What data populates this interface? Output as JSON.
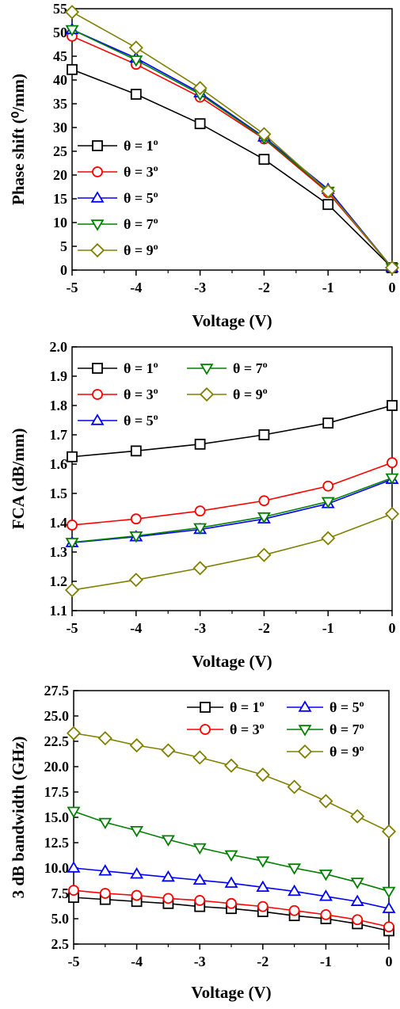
{
  "chart_data": [
    {
      "type": "line",
      "xlabel": "Voltage (V)",
      "ylabel": "Phase shift (⁰/mm)",
      "xlim": [
        -5,
        0
      ],
      "ylim": [
        0,
        55
      ],
      "xticks": [
        -5,
        -4,
        -3,
        -2,
        -1,
        0
      ],
      "xtick_labels": [
        "-5",
        "-4",
        "-3",
        "-2",
        "-1",
        "0"
      ],
      "yticks": [
        0,
        5,
        10,
        15,
        20,
        25,
        30,
        35,
        40,
        45,
        50,
        55
      ],
      "ytick_labels": [
        "0",
        "5",
        "10",
        "15",
        "20",
        "25",
        "30",
        "35",
        "40",
        "45",
        "50",
        "55"
      ],
      "legend": {
        "position": "left",
        "columns": 1
      },
      "x": [
        -5,
        -4,
        -3,
        -2,
        -1,
        0
      ],
      "series": [
        {
          "name": "θ = 1",
          "sup": "o",
          "color": "#000000",
          "marker": "square",
          "values": [
            42.2,
            37.0,
            30.8,
            23.3,
            13.8,
            0.5
          ]
        },
        {
          "name": "θ = 3",
          "sup": "o",
          "color": "#ff0000",
          "marker": "circle",
          "values": [
            49.2,
            43.3,
            36.4,
            27.6,
            16.3,
            0.5
          ]
        },
        {
          "name": "θ = 5",
          "sup": "o",
          "color": "#0000ff",
          "marker": "triangle-up",
          "values": [
            50.6,
            44.6,
            37.3,
            28.0,
            17.0,
            0.5
          ]
        },
        {
          "name": "θ = 7",
          "sup": "o",
          "color": "#008000",
          "marker": "triangle-down",
          "values": [
            50.6,
            44.2,
            37.0,
            27.8,
            16.6,
            0.5
          ]
        },
        {
          "name": "θ = 9",
          "sup": "o",
          "color": "#808000",
          "marker": "diamond",
          "values": [
            54.3,
            46.8,
            38.3,
            28.6,
            16.6,
            0.5
          ]
        }
      ]
    },
    {
      "type": "line",
      "xlabel": "Voltage (V)",
      "ylabel": "FCA (dB/mm)",
      "xlim": [
        -5,
        0
      ],
      "ylim": [
        1.1,
        2.0
      ],
      "xticks": [
        -5,
        -4,
        -3,
        -2,
        -1,
        0
      ],
      "xtick_labels": [
        "-5",
        "-4",
        "-3",
        "-2",
        "-1",
        "0"
      ],
      "yticks": [
        1.1,
        1.2,
        1.3,
        1.4,
        1.5,
        1.6,
        1.7,
        1.8,
        1.9,
        2.0
      ],
      "ytick_labels": [
        "1.1",
        "1.2",
        "1.3",
        "1.4",
        "1.5",
        "1.6",
        "1.7",
        "1.8",
        "1.9",
        "2.0"
      ],
      "legend": {
        "position": "top-left",
        "columns": 2
      },
      "x": [
        -5,
        -4,
        -3,
        -2,
        -1,
        0
      ],
      "series": [
        {
          "name": "θ = 1",
          "sup": "o",
          "color": "#000000",
          "marker": "square",
          "values": [
            1.625,
            1.645,
            1.668,
            1.7,
            1.74,
            1.8
          ]
        },
        {
          "name": "θ = 3",
          "sup": "o",
          "color": "#ff0000",
          "marker": "circle",
          "values": [
            1.392,
            1.413,
            1.44,
            1.475,
            1.525,
            1.605
          ]
        },
        {
          "name": "θ = 5",
          "sup": "o",
          "color": "#0000ff",
          "marker": "triangle-up",
          "values": [
            1.332,
            1.352,
            1.377,
            1.413,
            1.465,
            1.548
          ]
        },
        {
          "name": "θ = 7",
          "sup": "o",
          "color": "#008000",
          "marker": "triangle-down",
          "values": [
            1.333,
            1.355,
            1.383,
            1.42,
            1.472,
            1.553
          ]
        },
        {
          "name": "θ = 9",
          "sup": "o",
          "color": "#808000",
          "marker": "diamond",
          "values": [
            1.17,
            1.205,
            1.245,
            1.29,
            1.347,
            1.43
          ]
        }
      ]
    },
    {
      "type": "line",
      "xlabel": "Voltage (V)",
      "ylabel": "3 dB bandwidth (GHz)",
      "xlim": [
        -5,
        0
      ],
      "ylim": [
        2.5,
        27.5
      ],
      "xticks": [
        -5,
        -4,
        -3,
        -2,
        -1,
        0
      ],
      "xtick_labels": [
        "-5",
        "-4",
        "-3",
        "-2",
        "-1",
        "0"
      ],
      "yticks": [
        2.5,
        5,
        7.5,
        10,
        12.5,
        15,
        17.5,
        20,
        22.5,
        25,
        27.5
      ],
      "ytick_labels": [
        "2.5",
        "5.0",
        "7.5",
        "10.0",
        "12.5",
        "15.0",
        "17.5",
        "20.0",
        "22.5",
        "25.0",
        "27.5"
      ],
      "legend": {
        "position": "top-right",
        "columns": 2
      },
      "x": [
        -5,
        -4.5,
        -4,
        -3.5,
        -3,
        -2.5,
        -2,
        -1.5,
        -1,
        -0.5,
        0
      ],
      "series": [
        {
          "name": "θ = 1",
          "sup": "o",
          "color": "#000000",
          "marker": "square",
          "values": [
            7.1,
            6.9,
            6.7,
            6.5,
            6.2,
            6.0,
            5.7,
            5.3,
            5.0,
            4.5,
            3.8
          ]
        },
        {
          "name": "θ = 3",
          "sup": "o",
          "color": "#ff0000",
          "marker": "circle",
          "values": [
            7.8,
            7.5,
            7.3,
            7.0,
            6.8,
            6.5,
            6.2,
            5.8,
            5.4,
            4.9,
            4.2
          ]
        },
        {
          "name": "θ = 5",
          "sup": "o",
          "color": "#0000ff",
          "marker": "triangle-up",
          "values": [
            10.0,
            9.7,
            9.4,
            9.1,
            8.8,
            8.5,
            8.1,
            7.7,
            7.2,
            6.7,
            6.0
          ]
        },
        {
          "name": "θ = 7",
          "sup": "o",
          "color": "#008000",
          "marker": "triangle-down",
          "values": [
            15.6,
            14.5,
            13.7,
            12.8,
            12.0,
            11.3,
            10.7,
            10.0,
            9.4,
            8.6,
            7.7
          ]
        },
        {
          "name": "θ = 9",
          "sup": "o",
          "color": "#808000",
          "marker": "diamond",
          "values": [
            23.3,
            22.8,
            22.1,
            21.6,
            20.9,
            20.1,
            19.2,
            18.0,
            16.6,
            15.1,
            13.6
          ]
        }
      ]
    }
  ]
}
